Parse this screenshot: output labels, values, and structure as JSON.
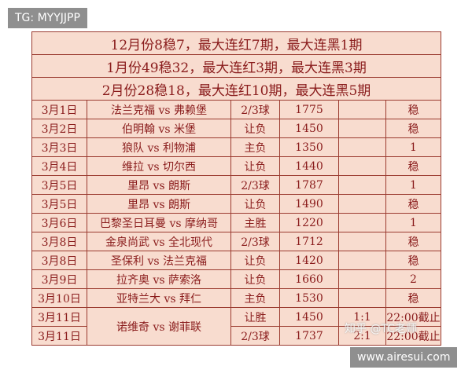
{
  "watermarks": {
    "top_left": "TG: MYYJJPP",
    "bottom_right": "www.airesui.com",
    "overlay": "知乎 @TC老师"
  },
  "table": {
    "summary": [
      "12月份8稳7，最大连红7期，最大连黑1期",
      "1月份49稳32，最大连红3期，最大连黑3期",
      "2月份28稳18，最大连红10期，最大连黑5期"
    ],
    "rows": [
      {
        "date": "3月1日",
        "match": "法兰克福 vs 弗赖堡",
        "bet": "2/3球",
        "number": 1775,
        "result": "稳"
      },
      {
        "date": "3月2日",
        "match": "伯明翰 vs 米堡",
        "bet": "让负",
        "number": 1450,
        "result": "稳"
      },
      {
        "date": "3月3日",
        "match": "狼队 vs 利物浦",
        "bet": "主负",
        "number": 1350,
        "result": 1
      },
      {
        "date": "3月4日",
        "match": "维拉 vs 切尔西",
        "bet": "让负",
        "number": 1440,
        "result": "稳"
      },
      {
        "date": "3月5日",
        "match": "里昂 vs 朗斯",
        "bet": "2/3球",
        "number": 1787,
        "result": 1
      },
      {
        "date": "3月5日",
        "match": "里昂 vs 朗斯",
        "bet": "让负",
        "number": 1490,
        "result": "稳"
      },
      {
        "date": "3月6日",
        "match": "巴黎圣日耳曼 vs 摩纳哥",
        "bet": "主胜",
        "number": 1220,
        "result": 1
      },
      {
        "date": "3月8日",
        "match": "金泉尚武 vs 全北现代",
        "bet": "2/3球",
        "number": 1712,
        "result": "稳"
      },
      {
        "date": "3月8日",
        "match": "圣保利 vs 法兰克福",
        "bet": "让负",
        "number": 1420,
        "result": "稳"
      },
      {
        "date": "3月9日",
        "match": "拉齐奥 vs 萨索洛",
        "bet": "让负",
        "number": 1660,
        "result": 2
      },
      {
        "date": "3月10日",
        "match": "亚特兰大 vs 拜仁",
        "bet": "主负",
        "number": 1530,
        "result": "稳"
      },
      {
        "date": "3月11日",
        "match": "诺维奇 vs 谢菲联",
        "bet": "让胜",
        "number": 1450,
        "score": "1:1",
        "result": "22:00截止"
      },
      {
        "date": "3月11日",
        "bet": "2/3球",
        "number": 1737,
        "score": "2:1",
        "result": "22:00截止"
      }
    ]
  }
}
